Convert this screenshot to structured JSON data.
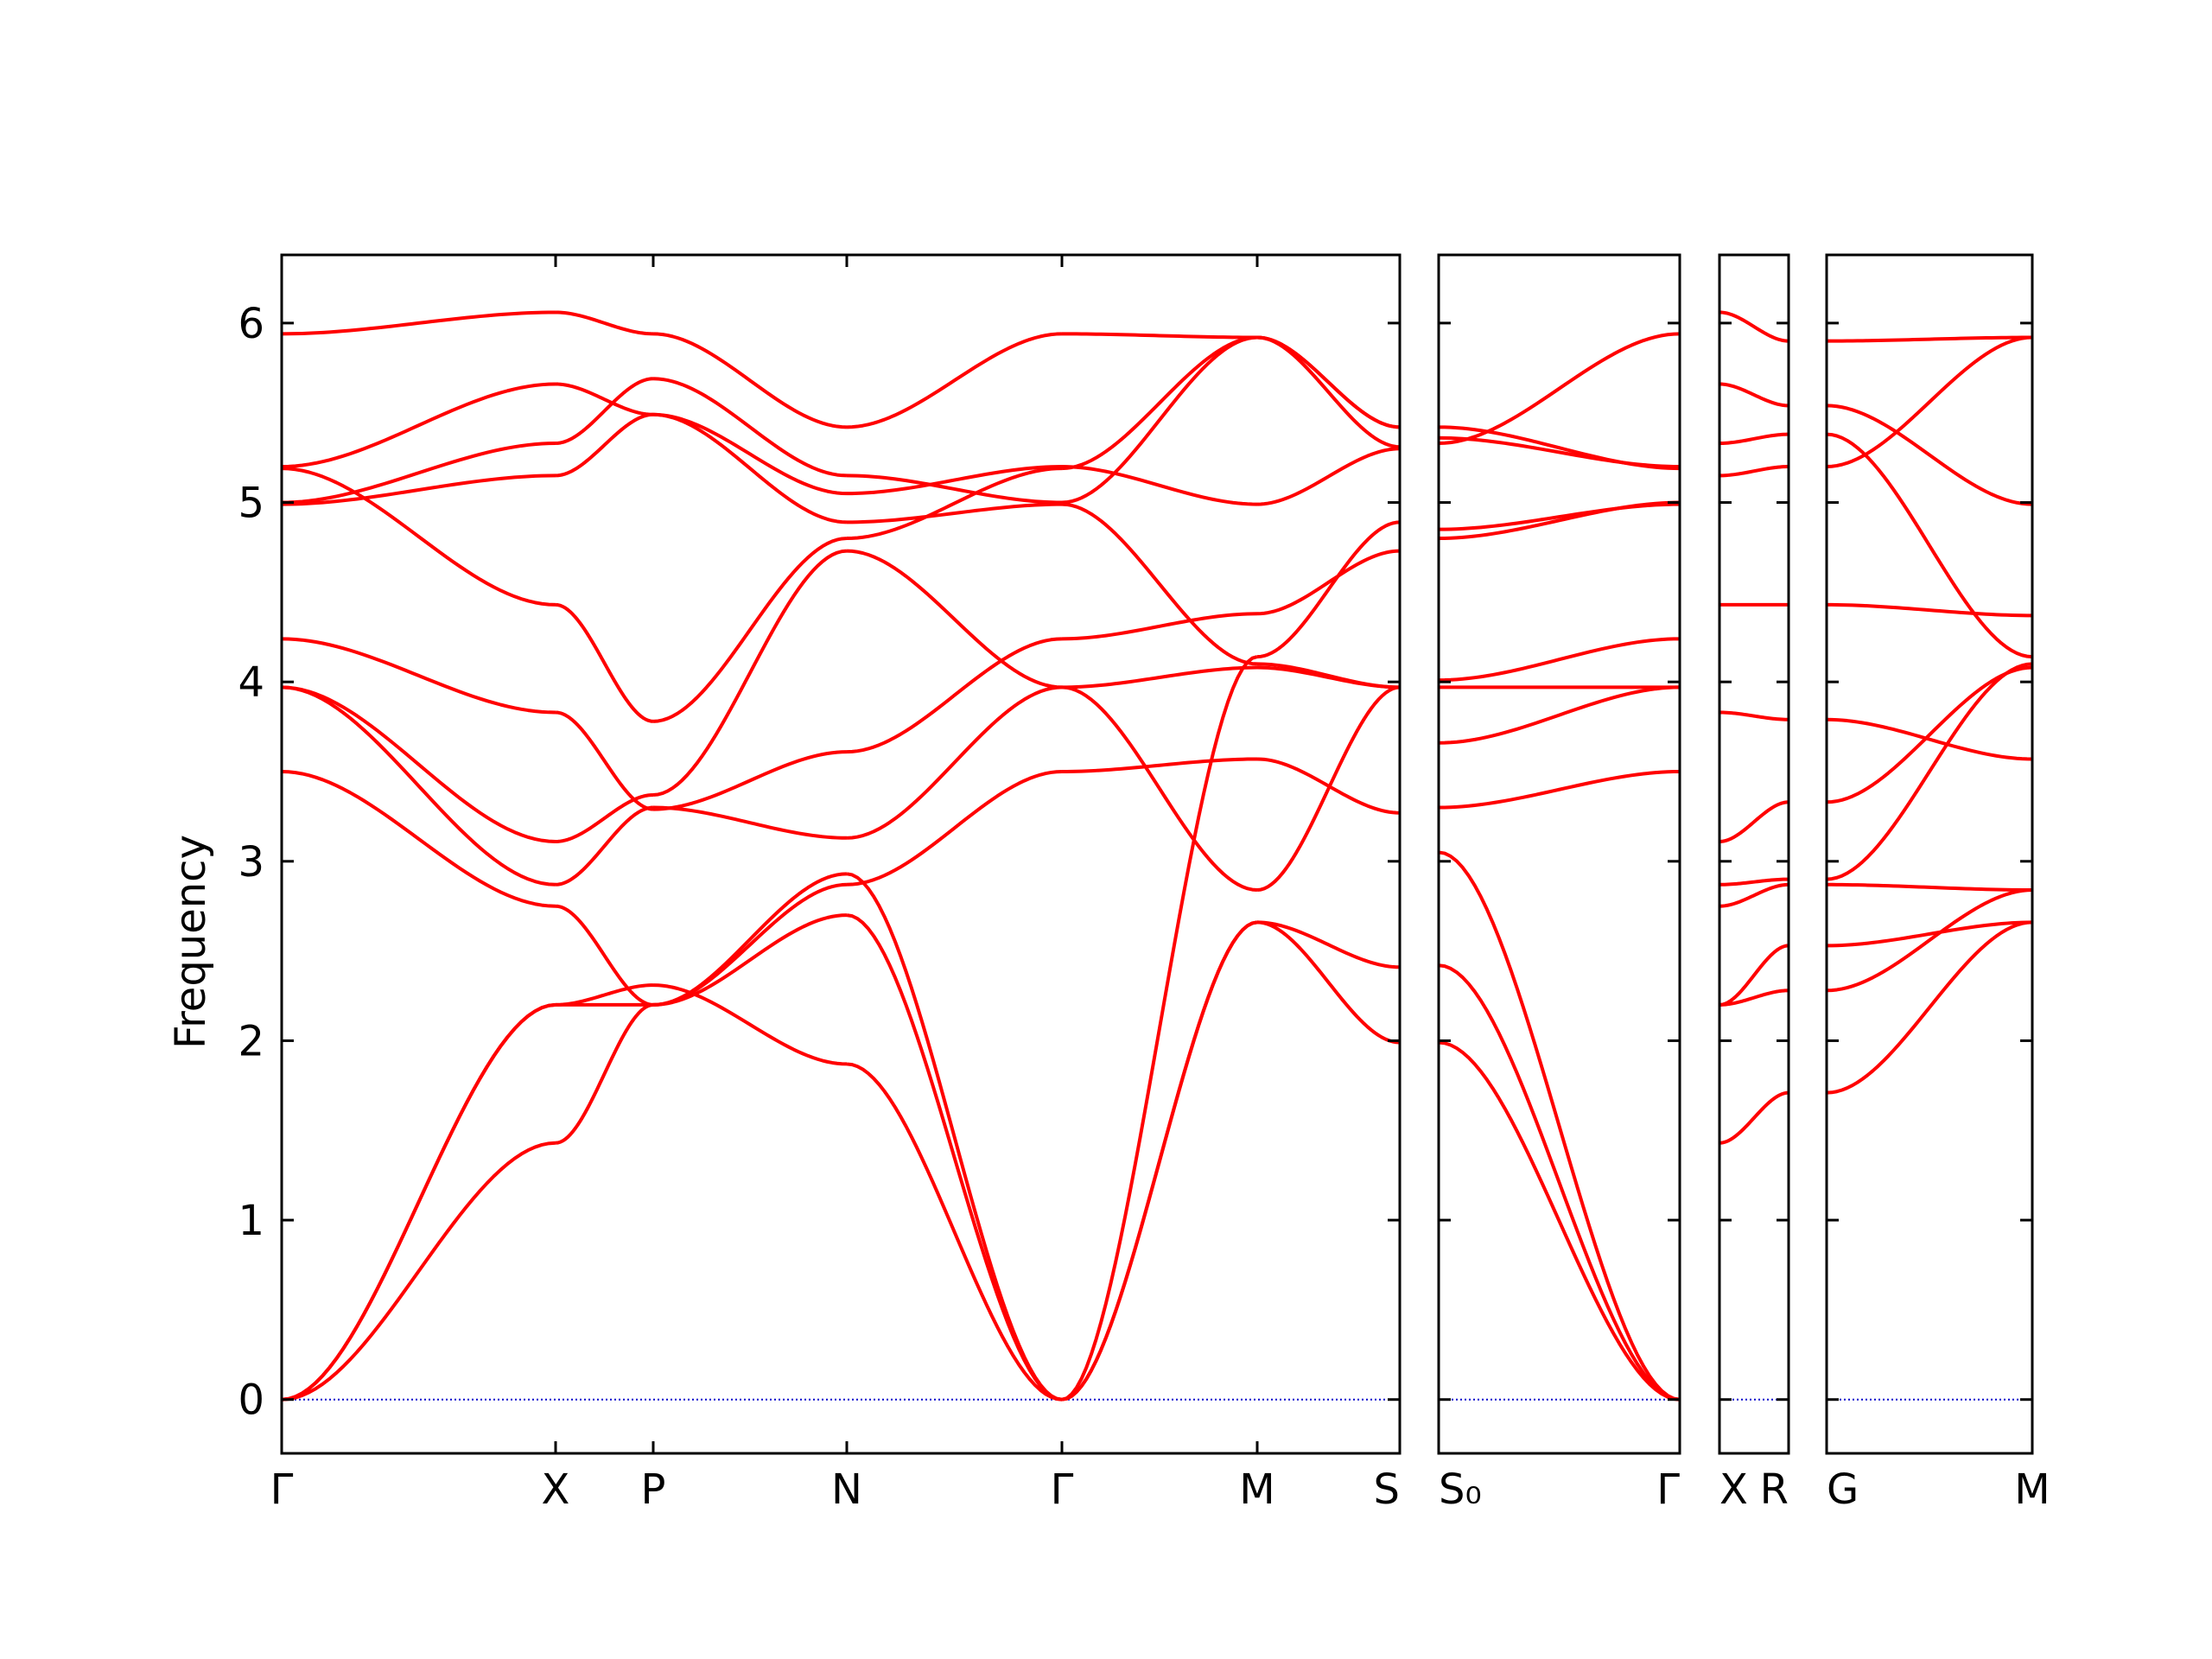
{
  "chart_data": {
    "type": "line",
    "ylabel": "Frequency",
    "ylim": [
      -0.3,
      6.38
    ],
    "yticks": [
      0,
      1,
      2,
      3,
      4,
      5,
      6
    ],
    "line_color": "#ff0000",
    "zero_line_color": "#0000cc",
    "grid": false,
    "panels": [
      {
        "segments": [
          {
            "from": "Γ",
            "to": "X",
            "bands": [
              [
                0,
                1.43
              ],
              [
                0,
                2.2
              ],
              [
                0,
                2.2
              ],
              [
                3.5,
                2.75
              ],
              [
                3.97,
                3.11
              ],
              [
                3.97,
                2.87
              ],
              [
                4.24,
                3.83
              ],
              [
                4.99,
                5.15
              ],
              [
                5.0,
                5.33
              ],
              [
                5.19,
                4.43
              ],
              [
                5.2,
                5.66
              ],
              [
                5.94,
                6.06
              ]
            ]
          },
          {
            "from": "X",
            "to": "P",
            "bands": [
              [
                1.43,
                2.2
              ],
              [
                2.2,
                2.31
              ],
              [
                2.2,
                2.2
              ],
              [
                2.75,
                2.2
              ],
              [
                3.11,
                3.37
              ],
              [
                2.87,
                3.3
              ],
              [
                3.83,
                3.29
              ],
              [
                5.15,
                5.49
              ],
              [
                5.33,
                5.69
              ],
              [
                4.43,
                3.78
              ],
              [
                5.66,
                5.49
              ],
              [
                6.06,
                5.94
              ]
            ]
          },
          {
            "from": "P",
            "to": "N",
            "bands": [
              [
                2.2,
                2.7
              ],
              [
                2.31,
                1.87
              ],
              [
                2.2,
                2.93
              ],
              [
                2.2,
                2.87
              ],
              [
                3.37,
                4.73
              ],
              [
                3.3,
                3.13
              ],
              [
                3.29,
                3.61
              ],
              [
                5.49,
                4.89
              ],
              [
                5.69,
                5.15
              ],
              [
                3.78,
                4.8
              ],
              [
                5.49,
                5.05
              ],
              [
                5.94,
                5.42
              ]
            ]
          },
          {
            "from": "N",
            "to": "Γ",
            "bands": [
              [
                2.7,
                0
              ],
              [
                1.87,
                0
              ],
              [
                2.93,
                0
              ],
              [
                2.87,
                3.5
              ],
              [
                4.73,
                3.97
              ],
              [
                3.13,
                3.97
              ],
              [
                3.61,
                4.24
              ],
              [
                4.89,
                4.99
              ],
              [
                5.15,
                5.0
              ],
              [
                4.8,
                5.19
              ],
              [
                5.05,
                5.2
              ],
              [
                5.42,
                5.94
              ]
            ]
          },
          {
            "from": "Γ",
            "to": "M",
            "bands": [
              [
                0,
                2.66
              ],
              [
                0,
                2.66
              ],
              [
                0,
                4.14
              ],
              [
                3.5,
                3.57
              ],
              [
                3.97,
                2.84
              ],
              [
                3.97,
                4.08
              ],
              [
                4.24,
                4.38
              ],
              [
                4.99,
                4.1
              ],
              [
                5.0,
                5.92
              ],
              [
                5.19,
                5.92
              ],
              [
                5.2,
                4.99
              ],
              [
                5.94,
                5.92
              ]
            ]
          },
          {
            "from": "M",
            "to": "S",
            "bands": [
              [
                2.66,
                1.99
              ],
              [
                2.66,
                2.41
              ],
              [
                4.14,
                4.89
              ],
              [
                3.57,
                3.27
              ],
              [
                2.84,
                3.97
              ],
              [
                4.08,
                3.97
              ],
              [
                4.38,
                4.73
              ],
              [
                4.1,
                3.97
              ],
              [
                5.92,
                5.31
              ],
              [
                5.92,
                5.42
              ],
              [
                4.99,
                5.3
              ],
              [
                5.92,
                5.42
              ]
            ]
          }
        ]
      },
      {
        "segments": [
          {
            "from": "S₀",
            "to": "Γ",
            "bands": [
              [
                2.42,
                0
              ],
              [
                1.99,
                0
              ],
              [
                3.05,
                0
              ],
              [
                3.3,
                3.5
              ],
              [
                3.97,
                3.97
              ],
              [
                3.66,
                3.97
              ],
              [
                4.01,
                4.24
              ],
              [
                4.85,
                4.99
              ],
              [
                4.8,
                5.0
              ],
              [
                5.42,
                5.19
              ],
              [
                5.36,
                5.2
              ],
              [
                5.33,
                5.94
              ]
            ]
          }
        ]
      },
      {
        "segments": [
          {
            "from": "X",
            "to": "R",
            "bands": [
              [
                1.43,
                1.71
              ],
              [
                2.2,
                2.28
              ],
              [
                2.2,
                2.53
              ],
              [
                2.75,
                2.87
              ],
              [
                2.87,
                2.9
              ],
              [
                3.11,
                3.33
              ],
              [
                3.83,
                3.79
              ],
              [
                4.43,
                4.43
              ],
              [
                5.15,
                5.2
              ],
              [
                5.33,
                5.38
              ],
              [
                5.66,
                5.54
              ],
              [
                6.06,
                5.9
              ]
            ]
          }
        ]
      },
      {
        "segments": [
          {
            "from": "G",
            "to": "M",
            "bands": [
              [
                1.71,
                2.66
              ],
              [
                2.28,
                2.84
              ],
              [
                2.53,
                2.66
              ],
              [
                2.87,
                2.84
              ],
              [
                2.9,
                4.1
              ],
              [
                3.33,
                4.08
              ],
              [
                3.79,
                3.57
              ],
              [
                4.43,
                4.37
              ],
              [
                5.2,
                5.92
              ],
              [
                5.38,
                4.14
              ],
              [
                5.54,
                4.99
              ],
              [
                5.9,
                5.92
              ]
            ]
          }
        ]
      }
    ],
    "xtick_labels": [
      {
        "text": "Γ"
      },
      {
        "text": "X"
      },
      {
        "text": "P"
      },
      {
        "text": "N"
      },
      {
        "text": "Γ"
      },
      {
        "text": "M"
      },
      {
        "text": "S"
      },
      {
        "text": "S₀"
      },
      {
        "text": "Γ"
      },
      {
        "text": "X"
      },
      {
        "text": "R"
      },
      {
        "text": "G"
      },
      {
        "text": "M"
      }
    ]
  }
}
